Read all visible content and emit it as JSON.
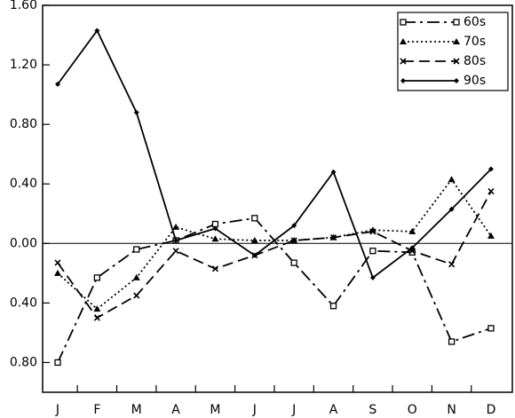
{
  "chart_data": {
    "type": "line",
    "categories": [
      "J",
      "F",
      "M",
      "A",
      "M",
      "J",
      "J",
      "A",
      "S",
      "O",
      "N",
      "D"
    ],
    "series": [
      {
        "name": "60s",
        "color": "#000000",
        "line_style": "dashdot",
        "marker": "open-square",
        "values": [
          -0.8,
          -0.23,
          -0.04,
          0.02,
          0.13,
          0.17,
          -0.13,
          -0.42,
          -0.05,
          -0.06,
          -0.66,
          -0.57
        ]
      },
      {
        "name": "70s",
        "color": "#000000",
        "line_style": "dotted",
        "marker": "triangle",
        "values": [
          -0.2,
          -0.44,
          -0.23,
          0.11,
          0.03,
          0.02,
          0.02,
          0.04,
          0.09,
          0.08,
          0.43,
          0.05
        ]
      },
      {
        "name": "80s",
        "color": "#000000",
        "line_style": "dashed",
        "marker": "cross",
        "values": [
          -0.13,
          -0.5,
          -0.35,
          -0.05,
          -0.17,
          -0.08,
          0.02,
          0.04,
          0.08,
          -0.05,
          -0.14,
          0.35
        ]
      },
      {
        "name": "90s",
        "color": "#000000",
        "line_style": "solid",
        "marker": "diamond",
        "values": [
          1.07,
          1.43,
          0.88,
          0.02,
          0.1,
          -0.08,
          0.12,
          0.48,
          -0.23,
          -0.03,
          0.23,
          0.5
        ]
      }
    ],
    "ylim": [
      -1.0,
      1.6
    ],
    "yticks": [
      1.6,
      1.2,
      0.8,
      0.4,
      0.0,
      {
        "value": -0.4,
        "label": "0.40"
      },
      {
        "value": -0.8,
        "label": "0.80"
      }
    ],
    "ytick_labels": [
      "1.60",
      "1.20",
      "0.80",
      "0.40",
      "0.00"
    ],
    "zero_line": true,
    "legend": "upper-right"
  }
}
